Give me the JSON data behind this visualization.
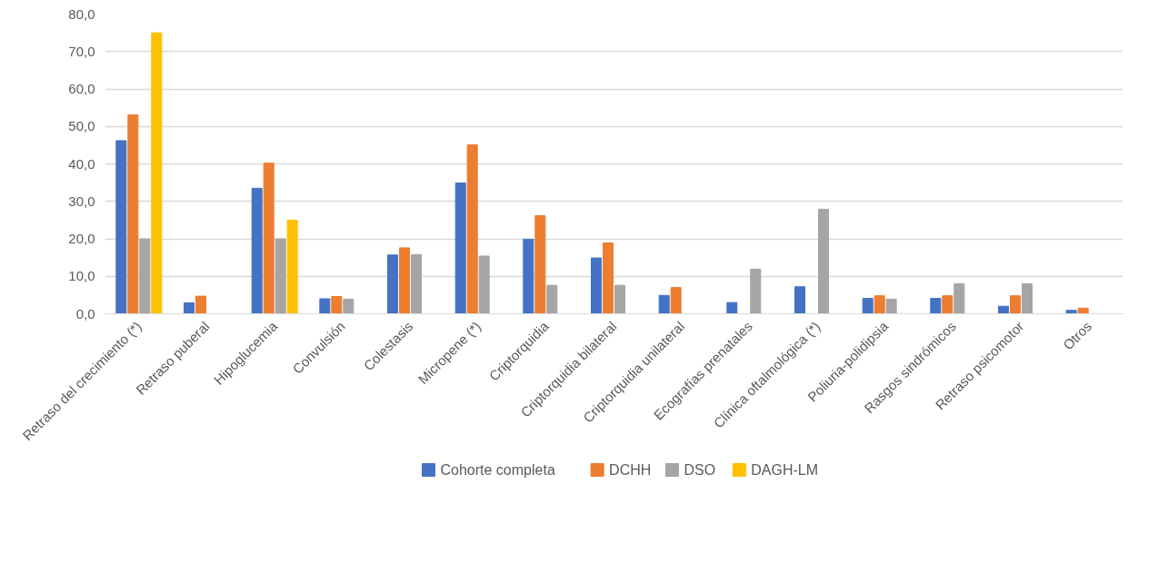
{
  "chart_data": {
    "type": "bar",
    "categories": [
      "Retraso del crecimiento (*)",
      "Retraso puberal",
      "Hipoglucemia",
      "Convulsión",
      "Colestasis",
      "Micropene (*)",
      "Criptorquidia",
      "Criptorquidia bilateral",
      "Criptorquidia unilateral",
      "Ecografías prenatales",
      "Clínica oftalmológica (*)",
      "Poliuria-polidipsia",
      "Rasgos sindrómicos",
      "Retraso psicomotor",
      "Otros"
    ],
    "series": [
      {
        "name": "Cohorte completa",
        "color": "#4472c4",
        "values": [
          46.2,
          2.9,
          33.5,
          4.0,
          15.7,
          34.9,
          19.9,
          14.9,
          4.9,
          3.0,
          7.2,
          4.1,
          4.1,
          2.0,
          0.9
        ]
      },
      {
        "name": "DCHH",
        "color": "#ed7d31",
        "values": [
          53.1,
          4.7,
          40.2,
          4.6,
          17.6,
          45.1,
          26.2,
          18.9,
          7.0,
          null,
          null,
          4.8,
          4.8,
          4.8,
          1.5
        ]
      },
      {
        "name": "DSO",
        "color": "#a5a5a5",
        "values": [
          20.0,
          null,
          20.0,
          3.9,
          15.8,
          15.4,
          7.6,
          7.6,
          null,
          11.9,
          27.9,
          3.9,
          8.0,
          8.0,
          null
        ]
      },
      {
        "name": "DAGH-LM",
        "color": "#ffc000",
        "values": [
          75.0,
          null,
          25.0,
          null,
          null,
          null,
          null,
          null,
          null,
          null,
          null,
          null,
          null,
          null,
          null
        ]
      }
    ],
    "ylim": [
      0,
      80
    ],
    "yticks": [
      {
        "value": 0,
        "label": "0,0"
      },
      {
        "value": 10,
        "label": "10,0"
      },
      {
        "value": 20,
        "label": "20,0"
      },
      {
        "value": 30,
        "label": "30,0"
      },
      {
        "value": 40,
        "label": "40,0"
      },
      {
        "value": 50,
        "label": "50,0"
      },
      {
        "value": 60,
        "label": "60,0"
      },
      {
        "value": 70,
        "label": "70,0"
      },
      {
        "value": 80,
        "label": "80,0"
      }
    ],
    "grid": "y",
    "legend": "bottom"
  }
}
